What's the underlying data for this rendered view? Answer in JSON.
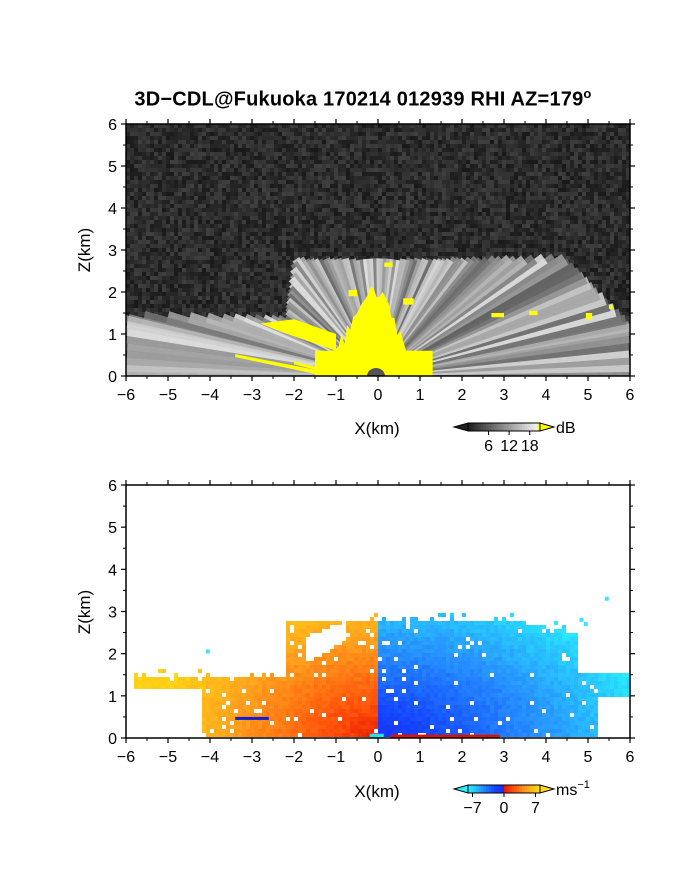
{
  "figure": {
    "title_main": "3D−CDL@Fukuoka 170214 012939 RHI AZ=179",
    "title_degree": "o"
  },
  "chart_data": [
    {
      "type": "heatmap",
      "panel": "top",
      "quantity": "backscatter intensity",
      "xlabel": "X(km)",
      "ylabel": "Z(km)",
      "xlim": [
        -6,
        6
      ],
      "ylim": [
        0,
        6
      ],
      "xticks": [
        -6,
        -5,
        -4,
        -3,
        -2,
        -1,
        0,
        1,
        2,
        3,
        4,
        5,
        6
      ],
      "yticks": [
        0,
        1,
        2,
        3,
        4,
        5,
        6
      ],
      "colorbar": {
        "unit": "dB",
        "ticks": [
          6,
          12,
          18
        ],
        "palette": "grayscale-to-yellow",
        "range": [
          0,
          21
        ]
      },
      "features": {
        "scan_top_height_km": 2.8,
        "scan_left_edge_height_km": 1.4,
        "scan_right_edge_height_km": 1.2,
        "strong_echo_max_height_km": 2.0,
        "strong_echo_extent_km": [
          -1.5,
          1.3
        ]
      },
      "colors": {
        "background": "#2a2a2a",
        "strong": "#ffff00"
      }
    },
    {
      "type": "heatmap",
      "panel": "bottom",
      "quantity": "radial velocity",
      "xlabel": "X(km)",
      "ylabel": "Z(km)",
      "xlim": [
        -6,
        6
      ],
      "ylim": [
        0,
        6
      ],
      "xticks": [
        -6,
        -5,
        -4,
        -3,
        -2,
        -1,
        0,
        1,
        2,
        3,
        4,
        5,
        6
      ],
      "yticks": [
        0,
        1,
        2,
        3,
        4,
        5,
        6
      ],
      "colorbar": {
        "unit_base": "ms",
        "unit_exp": "−1",
        "ticks": [
          "−7",
          "0",
          "7"
        ],
        "range": [
          -8,
          8
        ]
      },
      "features": {
        "positive_side": "x < 0",
        "negative_side": "x > 0",
        "scan_top_height_km": 2.8,
        "left_edge_height_km": 1.45,
        "right_edge_height_km": 1.35
      },
      "colors": {
        "background": "#ffffff",
        "positive_far": "#ffd700",
        "positive_near": "#ff2000",
        "negative_near": "#1040ff",
        "negative_far": "#30e0ff"
      }
    }
  ]
}
